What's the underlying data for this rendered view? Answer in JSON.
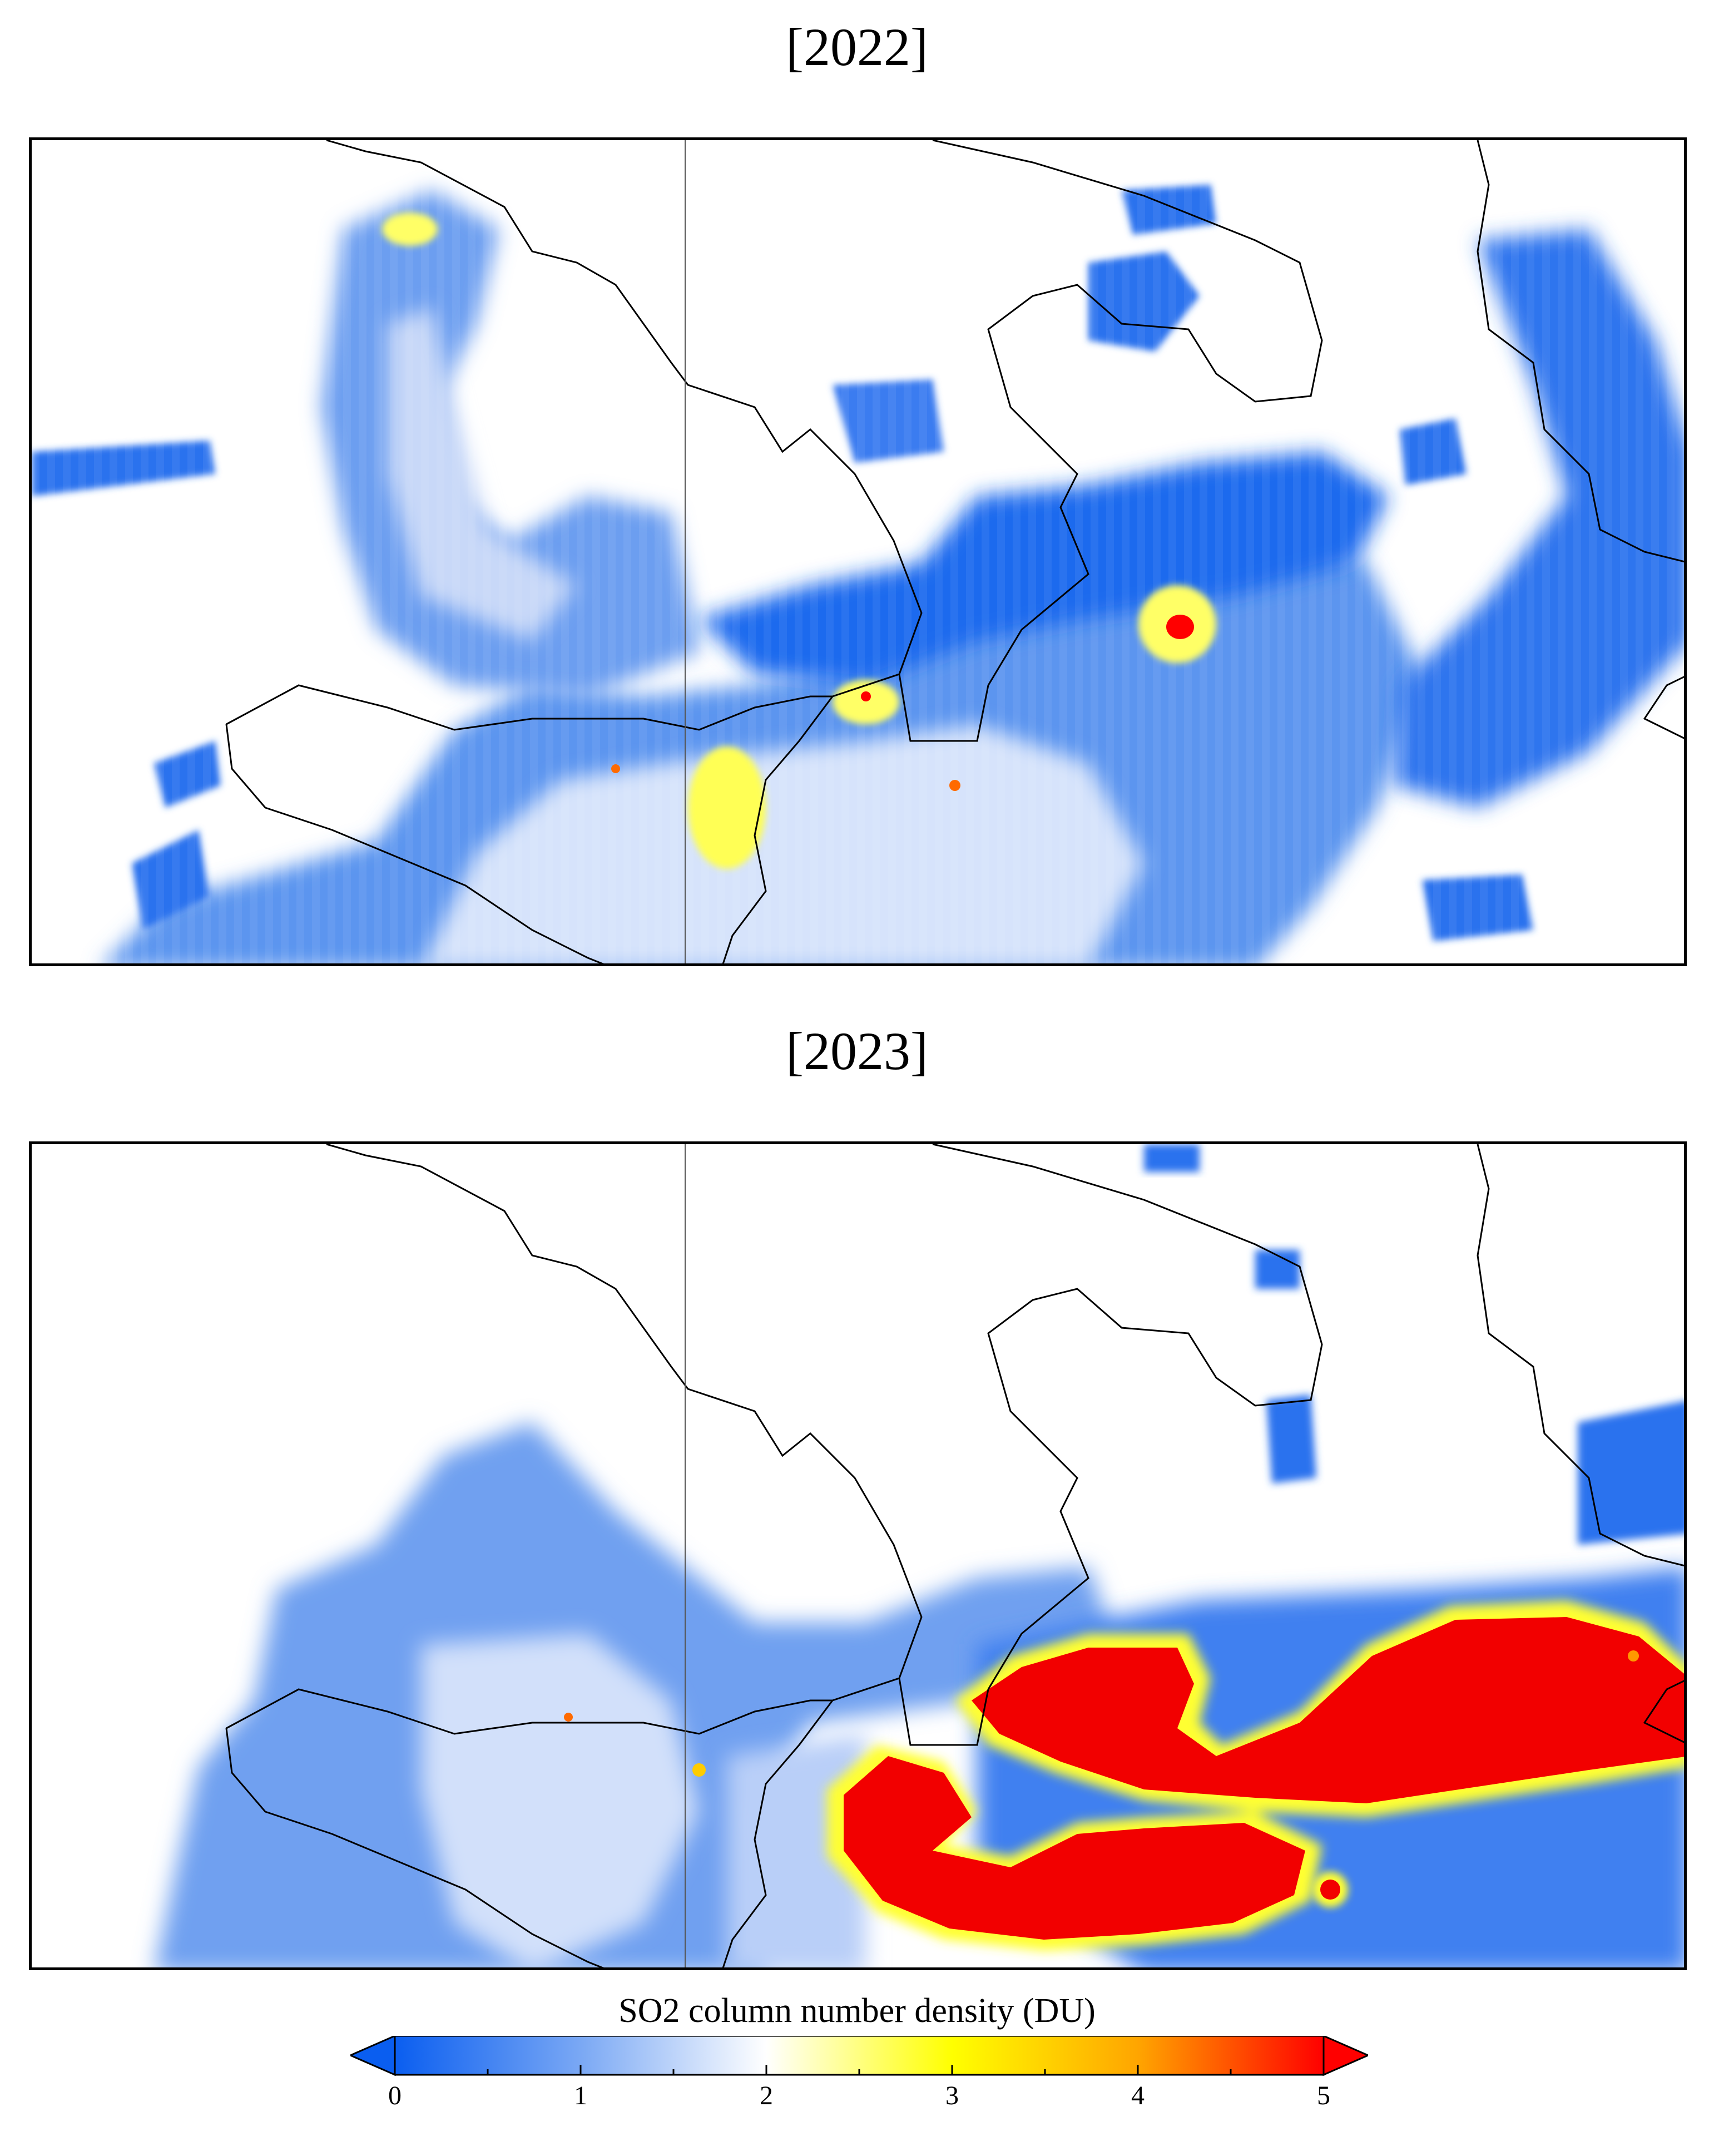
{
  "panels": [
    {
      "title": "[2022]"
    },
    {
      "title": "[2023]"
    }
  ],
  "colorbar": {
    "label": "SO2 column number density (DU)",
    "min": 0,
    "max": 5,
    "ticks": [
      "0",
      "1",
      "2",
      "3",
      "4",
      "5"
    ],
    "extend": "both",
    "colors": [
      "#0a5ef0",
      "#7aa8f4",
      "#ffffff",
      "#ffff00",
      "#ffa500",
      "#ff0000"
    ]
  }
}
